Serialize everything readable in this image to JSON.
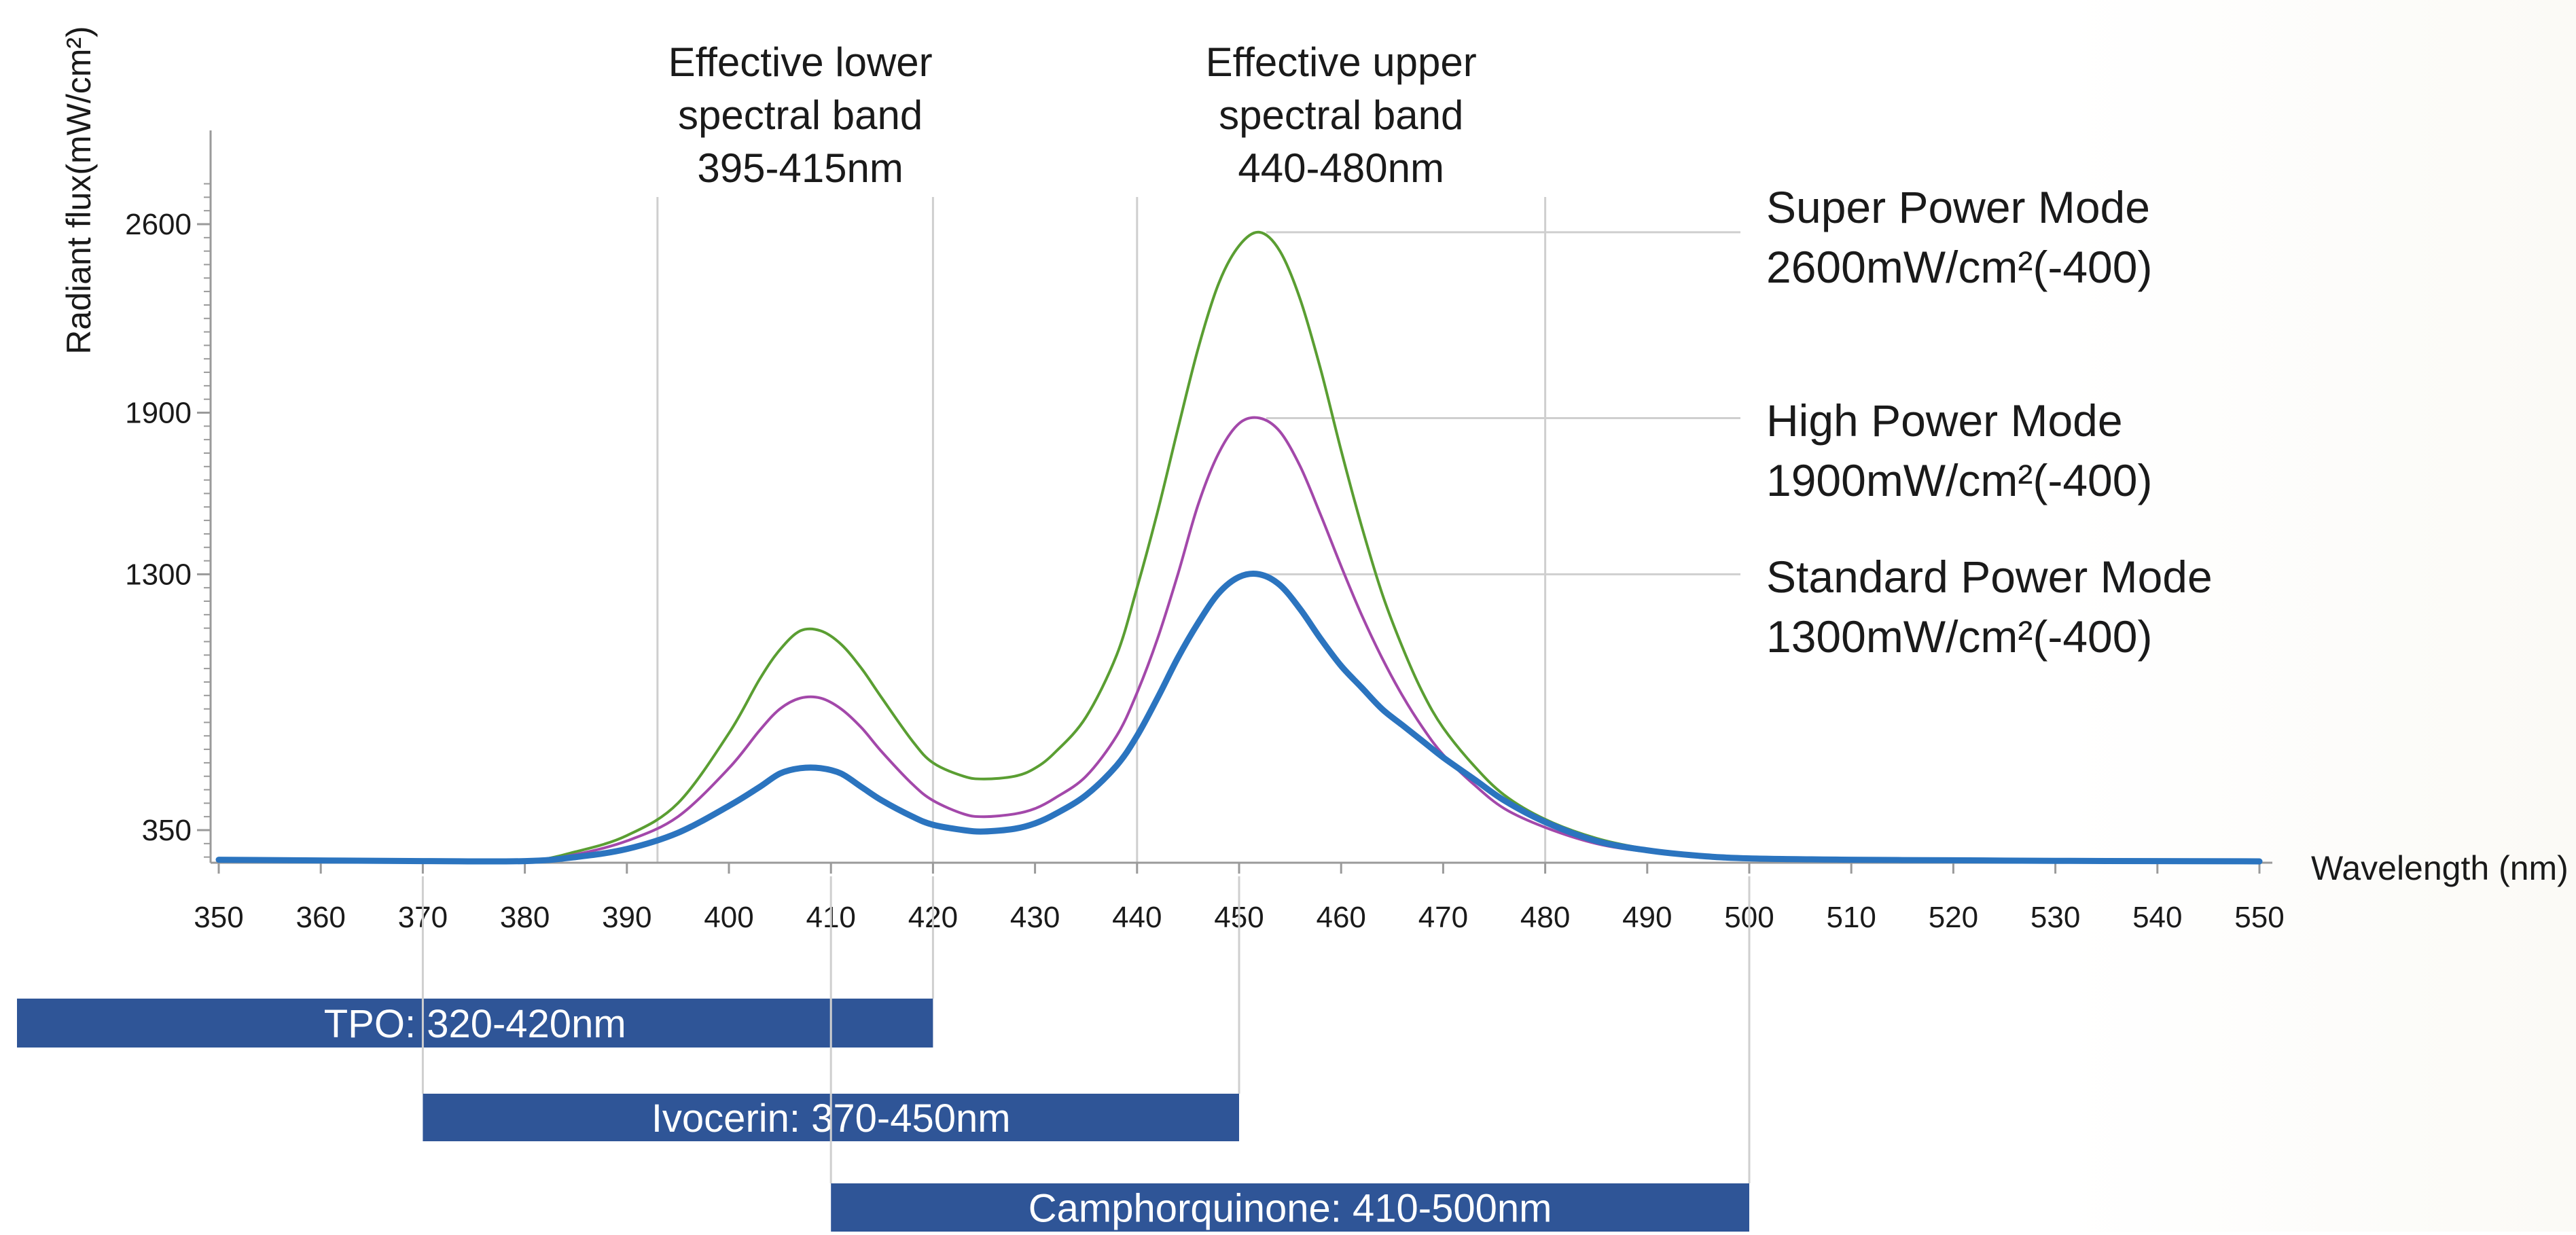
{
  "chart_data": {
    "type": "line",
    "ylabel": "Radiant flux(mW/cm²)",
    "xlabel": "Wavelength (nm)",
    "xlim": [
      350,
      550
    ],
    "ylim": [
      230,
      2700
    ],
    "x_ticks": [
      350,
      360,
      370,
      380,
      390,
      400,
      410,
      420,
      430,
      440,
      450,
      460,
      470,
      480,
      490,
      500,
      510,
      520,
      530,
      540,
      550
    ],
    "y_ticks": [
      350,
      1300,
      1900,
      2600
    ],
    "grid": "vertical band lines only",
    "band_lines": [
      393,
      420,
      440,
      480
    ],
    "annotations": [
      {
        "lines": [
          "Effective lower",
          "spectral band",
          "395-415nm"
        ],
        "x": 407
      },
      {
        "lines": [
          "Effective upper",
          "spectral band",
          "440-480nm"
        ],
        "x": 460
      }
    ],
    "series": [
      {
        "name": "Super Power Mode",
        "color": "#5a9e32",
        "label_lines": [
          "Super Power Mode",
          "2600mW/cm²(-400)"
        ],
        "peak_x": 452,
        "peak_y": 2570,
        "x": [
          350,
          370,
          380,
          385,
          390,
          395,
          400,
          403,
          405,
          407,
          409,
          411,
          413,
          415,
          418,
          420,
          423,
          425,
          428,
          430,
          432,
          435,
          438,
          440,
          442,
          444,
          446,
          448,
          450,
          452,
          454,
          456,
          458,
          460,
          462,
          464,
          466,
          468,
          470,
          473,
          476,
          480,
          485,
          490,
          495,
          500,
          510,
          520,
          530,
          540,
          550
        ],
        "values": [
          235,
          232,
          235,
          270,
          330,
          450,
          710,
          910,
          1020,
          1090,
          1090,
          1040,
          950,
          840,
          680,
          600,
          550,
          540,
          550,
          580,
          640,
          770,
          1000,
          1250,
          1530,
          1840,
          2140,
          2380,
          2520,
          2570,
          2500,
          2320,
          2060,
          1760,
          1480,
          1230,
          1030,
          860,
          730,
          590,
          480,
          390,
          320,
          280,
          260,
          250,
          240,
          238,
          236,
          235,
          234
        ]
      },
      {
        "name": "High Power Mode",
        "color": "#a348aa",
        "label_lines": [
          "High Power Mode",
          "1900mW/cm²(-400)"
        ],
        "peak_x": 452,
        "peak_y": 1880,
        "x": [
          350,
          370,
          380,
          385,
          390,
          395,
          400,
          403,
          405,
          407,
          409,
          411,
          413,
          415,
          418,
          420,
          423,
          425,
          428,
          430,
          432,
          435,
          438,
          440,
          442,
          444,
          446,
          448,
          450,
          452,
          454,
          456,
          458,
          460,
          462,
          464,
          466,
          468,
          470,
          473,
          476,
          480,
          485,
          490,
          495,
          500,
          510,
          520,
          530,
          540,
          550
        ],
        "values": [
          235,
          232,
          235,
          260,
          310,
          400,
          580,
          720,
          800,
          840,
          840,
          800,
          730,
          640,
          520,
          460,
          410,
          400,
          410,
          430,
          470,
          550,
          700,
          860,
          1060,
          1300,
          1560,
          1750,
          1860,
          1880,
          1830,
          1700,
          1520,
          1330,
          1150,
          990,
          850,
          730,
          630,
          520,
          430,
          360,
          300,
          270,
          255,
          245,
          238,
          236,
          235,
          234,
          233
        ]
      },
      {
        "name": "Standard Power Mode",
        "color": "#2b74bf",
        "label_lines": [
          "Standard Power Mode",
          "1300mW/cm²(-400)"
        ],
        "peak_x": 452,
        "peak_y": 1300,
        "x": [
          350,
          370,
          380,
          385,
          390,
          395,
          400,
          403,
          405,
          407,
          409,
          411,
          413,
          415,
          418,
          420,
          423,
          425,
          428,
          430,
          432,
          435,
          438,
          440,
          442,
          444,
          446,
          448,
          450,
          452,
          454,
          456,
          458,
          460,
          462,
          464,
          466,
          468,
          470,
          473,
          476,
          480,
          485,
          490,
          495,
          500,
          510,
          520,
          530,
          540,
          550
        ],
        "values": [
          240,
          235,
          235,
          250,
          280,
          340,
          440,
          510,
          560,
          580,
          580,
          560,
          510,
          460,
          400,
          370,
          350,
          345,
          355,
          375,
          410,
          480,
          590,
          700,
          840,
          990,
          1120,
          1230,
          1290,
          1300,
          1260,
          1170,
          1060,
          960,
          880,
          800,
          740,
          680,
          620,
          540,
          460,
          380,
          310,
          275,
          255,
          245,
          240,
          238,
          236,
          235,
          234
        ]
      }
    ],
    "bars": [
      {
        "label": "TPO: 320-420nm",
        "start": 320,
        "end": 420,
        "color": "#2f5597"
      },
      {
        "label": "Ivocerin: 370-450nm",
        "start": 370,
        "end": 450,
        "color": "#2f5597"
      },
      {
        "label": "Camphorquinone: 410-500nm",
        "start": 410,
        "end": 500,
        "color": "#2f5597"
      }
    ]
  }
}
